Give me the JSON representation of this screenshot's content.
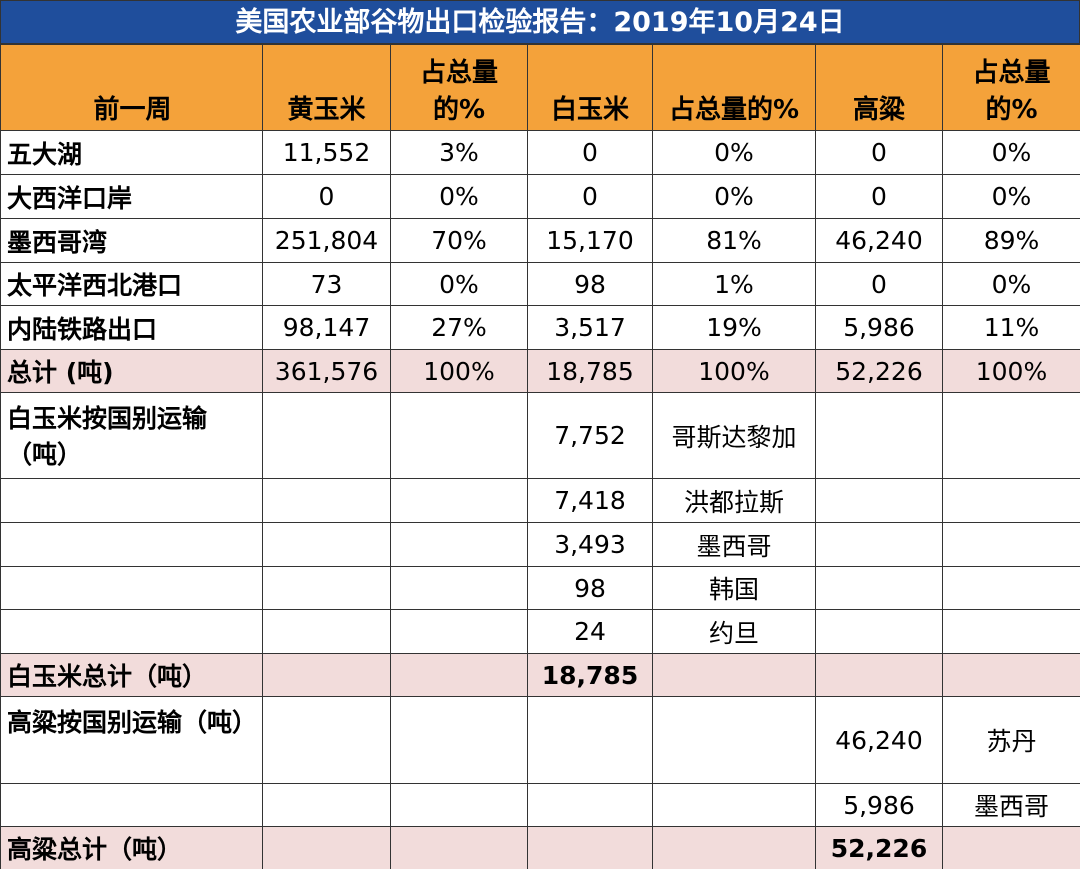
{
  "title": "美国农业部谷物出口检验报告：2019年10月24日",
  "table": {
    "header": [
      "前一周",
      "黄玉米",
      "占总量的%",
      "白玉米",
      "占总量的%",
      "高粱",
      "占总量的%"
    ],
    "rows": [
      [
        "五大湖",
        "11,552",
        "3%",
        "0",
        "0%",
        "0",
        "0%"
      ],
      [
        "大西洋口岸",
        "0",
        "0%",
        "0",
        "0%",
        "0",
        "0%"
      ],
      [
        "墨西哥湾",
        "251,804",
        "70%",
        "15,170",
        "81%",
        "46,240",
        "89%"
      ],
      [
        "太平洋西北港口",
        "73",
        "0%",
        "98",
        "1%",
        "0",
        "0%"
      ],
      [
        "内陆铁路出口",
        "98,147",
        "27%",
        "3,517",
        "19%",
        "5,986",
        "11%"
      ],
      [
        "总计 (吨)",
        "361,576",
        "100%",
        "18,785",
        "100%",
        "52,226",
        "100%"
      ],
      [
        "白玉米按国别运输（吨）",
        null,
        null,
        "7,752",
        "哥斯达黎加",
        null,
        null
      ],
      [
        null,
        null,
        null,
        "7,418",
        "洪都拉斯",
        null,
        null
      ],
      [
        null,
        null,
        null,
        "3,493",
        "墨西哥",
        null,
        null
      ],
      [
        null,
        null,
        null,
        "98",
        "韩国",
        null,
        null
      ],
      [
        null,
        null,
        null,
        "24",
        "约旦",
        null,
        null
      ],
      [
        "白玉米总计（吨）",
        null,
        null,
        "18,785",
        null,
        null,
        null
      ],
      [
        "高粱按国别运输（吨）",
        null,
        null,
        null,
        null,
        "46,240",
        "苏丹"
      ],
      [
        null,
        null,
        null,
        null,
        null,
        "5,986",
        "墨西哥"
      ],
      [
        "高粱总计（吨）",
        null,
        null,
        null,
        null,
        "52,226",
        null
      ]
    ]
  }
}
